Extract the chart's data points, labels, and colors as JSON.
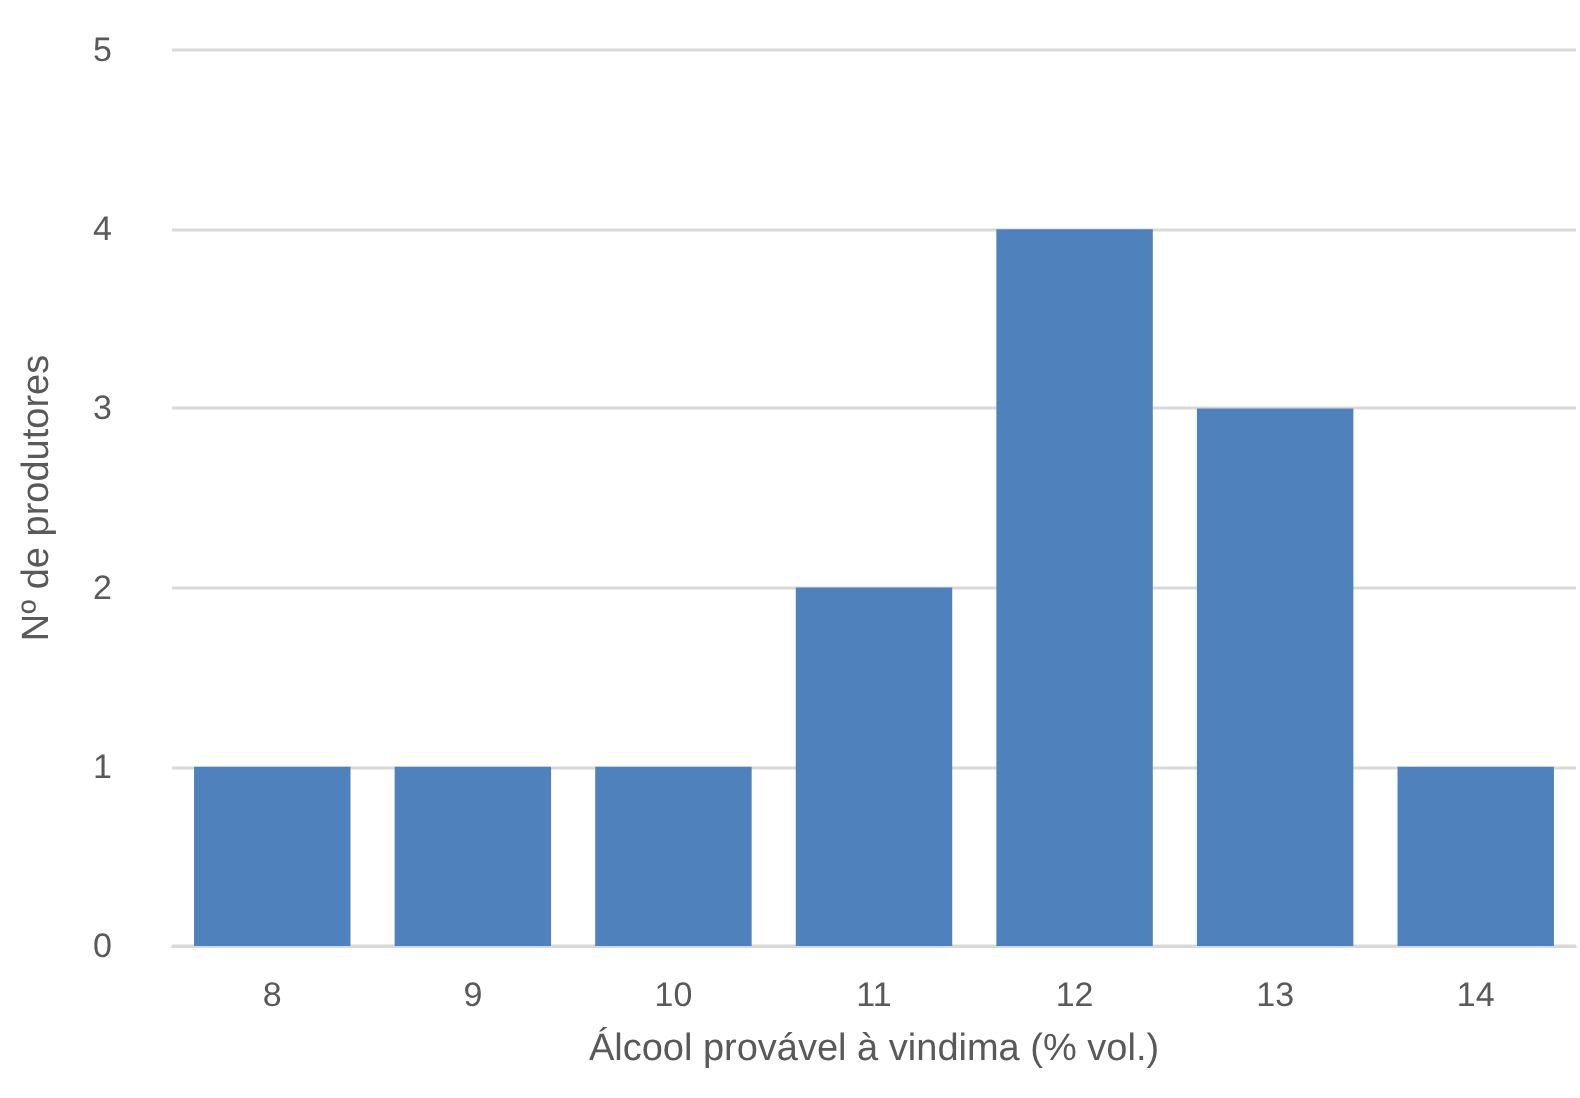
{
  "chart_data": {
    "type": "bar",
    "xlabel": "Álcool provável à vindima (% vol.)",
    "ylabel": "Nº de produtores",
    "categories": [
      "8",
      "9",
      "10",
      "11",
      "12",
      "13",
      "14"
    ],
    "values": [
      1,
      1,
      1,
      2,
      4,
      3,
      1
    ],
    "color": "#4f81bd",
    "ylim": [
      0,
      5
    ],
    "yticks": [
      0,
      1,
      2,
      3,
      4,
      5
    ],
    "grid": "y"
  }
}
